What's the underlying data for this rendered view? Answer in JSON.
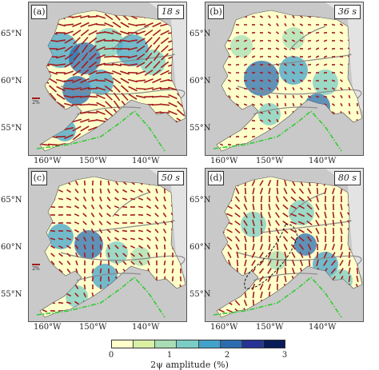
{
  "panels": [
    {
      "label": "(a)",
      "period": "18 s"
    },
    {
      "label": "(b)",
      "period": "36 s"
    },
    {
      "label": "(c)",
      "period": "50 s"
    },
    {
      "label": "(d)",
      "period": "80 s"
    }
  ],
  "scale_bar_label": "2%",
  "lat_ticks": [
    "65°N",
    "60°N",
    "55°N"
  ],
  "lon_ticks": [
    "160°W",
    "150°W",
    "140°W"
  ],
  "colorbar": {
    "ticks": [
      "0",
      "1",
      "2",
      "3"
    ],
    "label": "2ψ amplitude (%)",
    "colors": [
      "#ffffcc",
      "#d9f0a3",
      "#a8ddb5",
      "#7bccc4",
      "#43a2ca",
      "#2b6cb0",
      "#253494",
      "#081d58"
    ]
  },
  "map_colors": {
    "ocean": "#c9c9c9",
    "land": "#e3e3e3",
    "fault": "#8a8a8a",
    "trench": "#33cc33",
    "bar": "#a31d1d"
  }
}
